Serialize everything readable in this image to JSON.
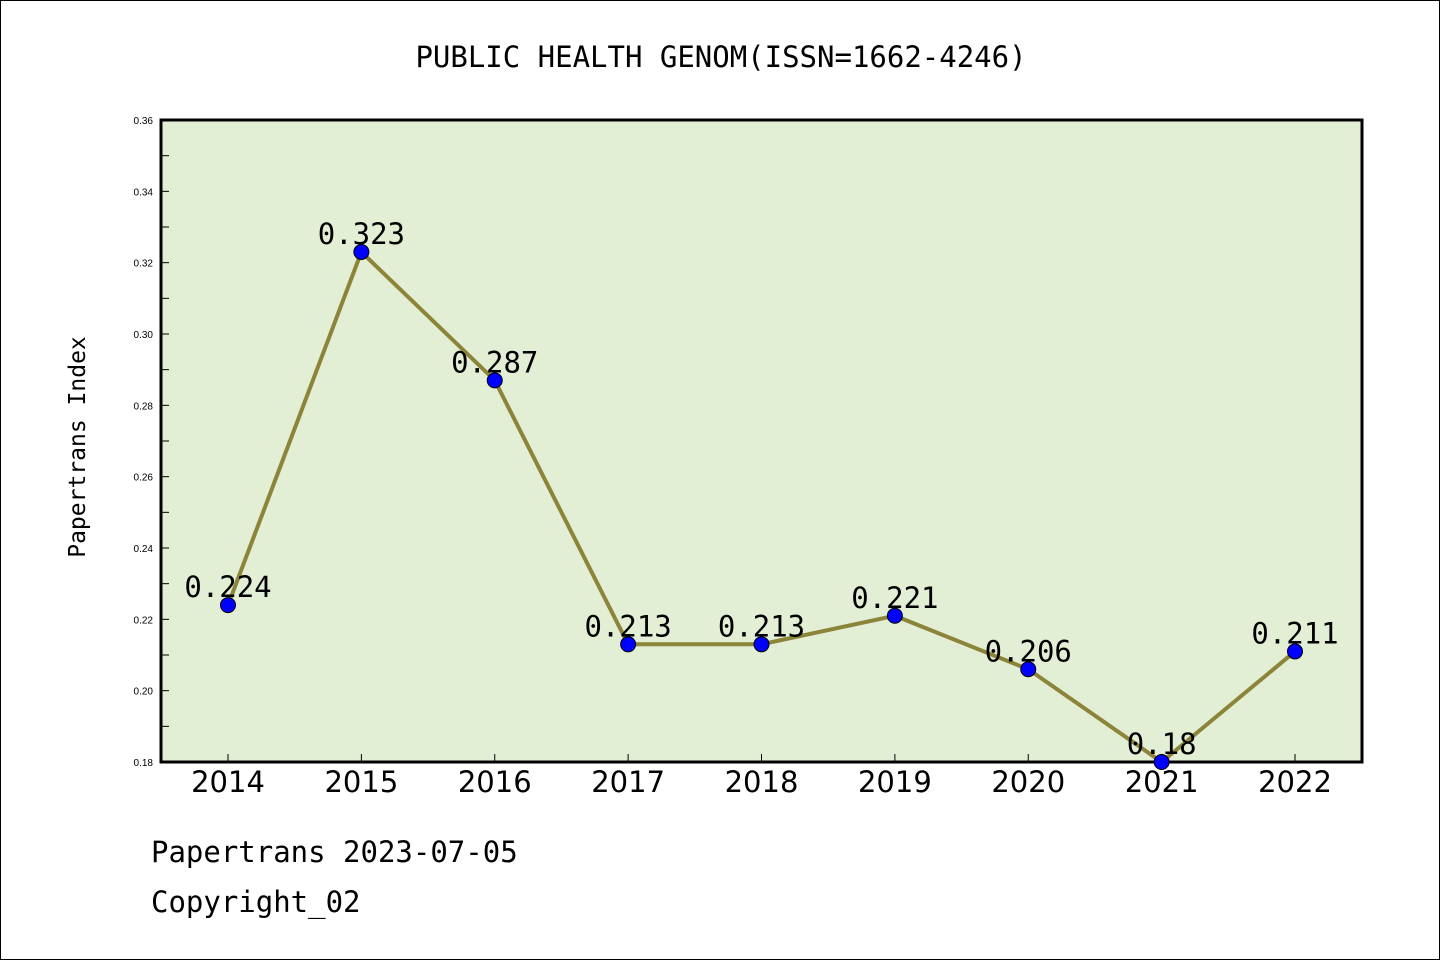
{
  "chart_data": {
    "type": "line",
    "title": "PUBLIC HEALTH GENOM(ISSN=1662-4246)",
    "xlabel": "",
    "ylabel": "Papertrans Index",
    "categories": [
      "2014",
      "2015",
      "2016",
      "2017",
      "2018",
      "2019",
      "2020",
      "2021",
      "2022"
    ],
    "series": [
      {
        "values": [
          0.224,
          0.323,
          0.287,
          0.213,
          0.213,
          0.221,
          0.206,
          0.18,
          0.211
        ],
        "labels": [
          "0.224",
          "0.323",
          "0.287",
          "0.213",
          "0.213",
          "0.221",
          "0.206",
          "0.18",
          "0.211"
        ]
      }
    ],
    "ylim": [
      0.18,
      0.36
    ],
    "yticks": [
      0.18,
      0.2,
      0.22,
      0.24,
      0.26,
      0.28,
      0.3,
      0.32,
      0.34,
      0.36
    ],
    "ytick_labels": [
      "0.18",
      "0.20",
      "0.22",
      "0.24",
      "0.26",
      "0.28",
      "0.30",
      "0.32",
      "0.34",
      "0.36"
    ],
    "grid": false,
    "legend": "none",
    "colors": {
      "plot_background": "#e2efd5",
      "line": "#8b8439",
      "marker": "#0000ff"
    }
  },
  "footer": {
    "line1": "Papertrans 2023-07-05",
    "line2": "Copyright_02"
  }
}
